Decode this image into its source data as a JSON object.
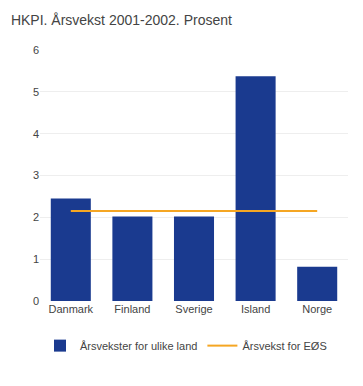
{
  "chart_data": {
    "type": "bar",
    "title": "HKPI. Årsvekst 2001-2002. Prosent",
    "categories": [
      "Danmark",
      "Finland",
      "Sverige",
      "Island",
      "Norge"
    ],
    "series": [
      {
        "name": "Årsvekster for ulike land",
        "type": "bar",
        "color": "#1a3a8f",
        "values": [
          2.45,
          2.02,
          2.02,
          5.37,
          0.82
        ]
      },
      {
        "name": "Årsvekst for EØS",
        "type": "line",
        "color": "#f5a623",
        "values": [
          2.15,
          2.15,
          2.15,
          2.15,
          2.15
        ]
      }
    ],
    "ylim": [
      0,
      6
    ],
    "yticks": [
      0,
      1,
      2,
      3,
      4,
      5,
      6
    ],
    "grid": true,
    "legend": "bottom"
  }
}
